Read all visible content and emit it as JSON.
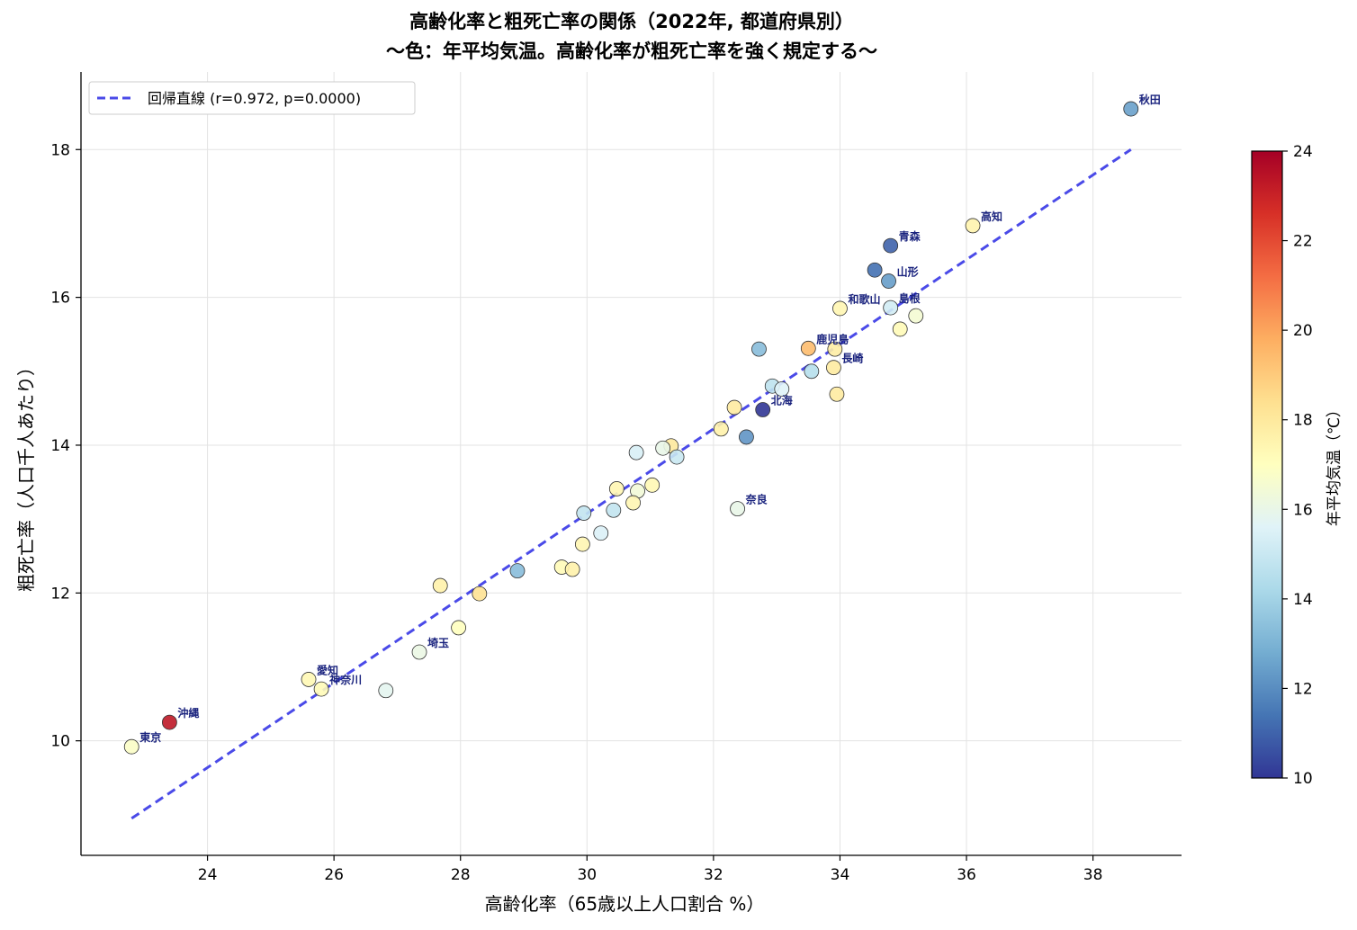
{
  "chart_data": {
    "type": "scatter",
    "title_lines": [
      "高齢化率と粗死亡率の関係（2022年, 都道府県別）",
      "〜色：年平均気温。高齢化率が粗死亡率を強く規定する〜"
    ],
    "xlabel": "高齢化率（65歳以上人口割合 %）",
    "ylabel": "粗死亡率（人口千人あたり）",
    "xlim": [
      22.0,
      39.4
    ],
    "ylim": [
      8.45,
      19.05
    ],
    "xticks": [
      24,
      26,
      28,
      30,
      32,
      34,
      36,
      38
    ],
    "yticks": [
      10,
      12,
      14,
      16,
      18
    ],
    "grid": true,
    "legend": {
      "position": "top-left",
      "label": "回帰直線 (r=0.972, p=0.0000)"
    },
    "regression_line": {
      "x": [
        22.8,
        38.6
      ],
      "y": [
        8.95,
        18.0
      ],
      "color": "#4a4ae8",
      "style": "dashed"
    },
    "colorbar": {
      "label": "年平均気温（℃）",
      "min": 10,
      "max": 24,
      "ticks": [
        10,
        12,
        14,
        16,
        18,
        20,
        22,
        24
      ],
      "colormap": "RdYlBu_r"
    },
    "points": [
      {
        "x": 38.6,
        "y": 18.55,
        "temp": 12.5,
        "label": "秋田"
      },
      {
        "x": 36.1,
        "y": 16.97,
        "temp": 17.5,
        "label": "高知"
      },
      {
        "x": 34.8,
        "y": 16.7,
        "temp": 11.0,
        "label": "青森"
      },
      {
        "x": 34.55,
        "y": 16.37,
        "temp": 11.3
      },
      {
        "x": 34.77,
        "y": 16.22,
        "temp": 12.4,
        "label": "山形"
      },
      {
        "x": 34.0,
        "y": 15.85,
        "temp": 17.4,
        "label": "和歌山"
      },
      {
        "x": 34.8,
        "y": 15.86,
        "temp": 15.2,
        "label": "島根"
      },
      {
        "x": 35.2,
        "y": 15.75,
        "temp": 16.5
      },
      {
        "x": 34.95,
        "y": 15.57,
        "temp": 17.2
      },
      {
        "x": 32.72,
        "y": 15.3,
        "temp": 13.3
      },
      {
        "x": 33.5,
        "y": 15.31,
        "temp": 19.4,
        "label": "鹿児島"
      },
      {
        "x": 33.92,
        "y": 15.3,
        "temp": 17.8
      },
      {
        "x": 33.9,
        "y": 15.05,
        "temp": 17.9,
        "label": "長崎"
      },
      {
        "x": 33.55,
        "y": 15.0,
        "temp": 14.5
      },
      {
        "x": 32.93,
        "y": 14.8,
        "temp": 14.7
      },
      {
        "x": 33.08,
        "y": 14.76,
        "temp": 15.6
      },
      {
        "x": 33.95,
        "y": 14.69,
        "temp": 17.9
      },
      {
        "x": 32.33,
        "y": 14.51,
        "temp": 17.9
      },
      {
        "x": 32.78,
        "y": 14.48,
        "temp": 10.0,
        "label": "北海"
      },
      {
        "x": 32.12,
        "y": 14.22,
        "temp": 17.6
      },
      {
        "x": 32.52,
        "y": 14.11,
        "temp": 12.2
      },
      {
        "x": 31.33,
        "y": 13.99,
        "temp": 18.0
      },
      {
        "x": 31.2,
        "y": 13.96,
        "temp": 16.0
      },
      {
        "x": 30.78,
        "y": 13.9,
        "temp": 15.4
      },
      {
        "x": 31.42,
        "y": 13.84,
        "temp": 15.0
      },
      {
        "x": 31.03,
        "y": 13.46,
        "temp": 17.3
      },
      {
        "x": 30.47,
        "y": 13.41,
        "temp": 17.4
      },
      {
        "x": 30.8,
        "y": 13.38,
        "temp": 16.4
      },
      {
        "x": 30.73,
        "y": 13.22,
        "temp": 17.4
      },
      {
        "x": 32.38,
        "y": 13.14,
        "temp": 16.0,
        "label": "奈良"
      },
      {
        "x": 30.42,
        "y": 13.12,
        "temp": 14.8
      },
      {
        "x": 29.95,
        "y": 13.08,
        "temp": 14.8
      },
      {
        "x": 30.22,
        "y": 12.81,
        "temp": 15.5
      },
      {
        "x": 29.93,
        "y": 12.66,
        "temp": 17.4
      },
      {
        "x": 28.9,
        "y": 12.3,
        "temp": 13.3
      },
      {
        "x": 29.6,
        "y": 12.35,
        "temp": 17.2
      },
      {
        "x": 29.77,
        "y": 12.32,
        "temp": 17.6
      },
      {
        "x": 27.68,
        "y": 12.1,
        "temp": 17.6
      },
      {
        "x": 28.3,
        "y": 11.99,
        "temp": 18.3
      },
      {
        "x": 27.97,
        "y": 11.53,
        "temp": 17.0
      },
      {
        "x": 27.35,
        "y": 11.2,
        "temp": 16.1,
        "label": "埼玉"
      },
      {
        "x": 25.6,
        "y": 10.83,
        "temp": 17.3,
        "label": "愛知"
      },
      {
        "x": 25.8,
        "y": 10.7,
        "temp": 17.2,
        "label": "神奈川"
      },
      {
        "x": 26.82,
        "y": 10.68,
        "temp": 15.8
      },
      {
        "x": 23.4,
        "y": 10.25,
        "temp": 23.3,
        "label": "沖縄"
      },
      {
        "x": 22.8,
        "y": 9.92,
        "temp": 16.8,
        "label": "東京"
      }
    ]
  }
}
